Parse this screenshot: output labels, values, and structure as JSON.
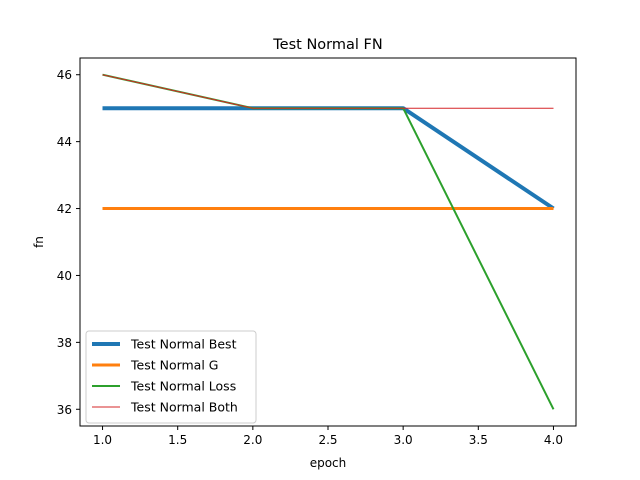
{
  "chart_data": {
    "type": "line",
    "title": "Test Normal FN",
    "xlabel": "epoch",
    "ylabel": "fn",
    "xlim": [
      0.85,
      4.15
    ],
    "ylim": [
      35.5,
      46.5
    ],
    "xticks": [
      1.0,
      1.5,
      2.0,
      2.5,
      3.0,
      3.5,
      4.0
    ],
    "xtick_labels": [
      "1.0",
      "1.5",
      "2.0",
      "2.5",
      "3.0",
      "3.5",
      "4.0"
    ],
    "yticks": [
      36,
      38,
      40,
      42,
      44,
      46
    ],
    "ytick_labels": [
      "36",
      "38",
      "40",
      "42",
      "44",
      "46"
    ],
    "grid": false,
    "legend_position": "lower-left",
    "series": [
      {
        "name": "Test Normal Best",
        "color": "#1f77b4",
        "width": 4,
        "x": [
          1,
          2,
          3,
          4
        ],
        "y": [
          45,
          45,
          45,
          42
        ]
      },
      {
        "name": "Test Normal G",
        "color": "#ff7f0e",
        "width": 3,
        "x": [
          1,
          2,
          3,
          4
        ],
        "y": [
          42,
          42,
          42,
          42
        ]
      },
      {
        "name": "Test Normal Loss",
        "color": "#2ca02c",
        "width": 2,
        "x": [
          1,
          2,
          3,
          4
        ],
        "y": [
          46,
          45,
          45,
          36
        ]
      },
      {
        "name": "Test Normal Both",
        "color": "#d62728",
        "width": 1,
        "x": [
          1,
          2,
          3,
          4
        ],
        "y": [
          46,
          45,
          45,
          45
        ]
      }
    ]
  }
}
